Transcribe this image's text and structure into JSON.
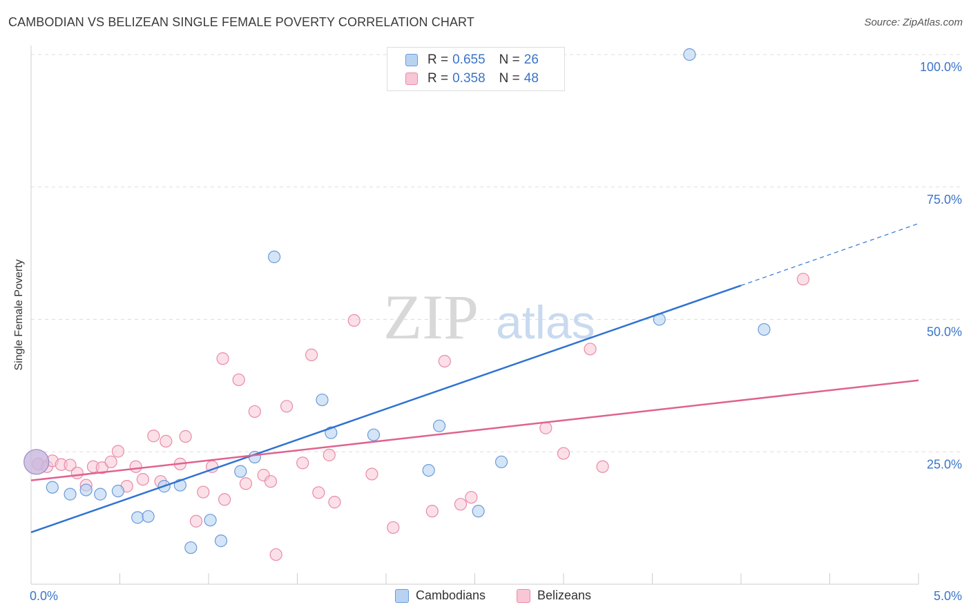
{
  "header": {
    "title": "CAMBODIAN VS BELIZEAN SINGLE FEMALE POVERTY CORRELATION CHART",
    "source": "Source: ZipAtlas.com"
  },
  "watermark": {
    "zip": "ZIP",
    "atlas": "atlas"
  },
  "legend": {
    "rows": [
      {
        "r_label": "R = ",
        "r_value": "0.655",
        "n_label": "N = ",
        "n_value": "26"
      },
      {
        "r_label": "R = ",
        "r_value": "0.358",
        "n_label": "N = ",
        "n_value": "48"
      }
    ],
    "bottom": [
      "Cambodians",
      "Belizeans"
    ]
  },
  "colors": {
    "blue_fill": "#b8d3f2",
    "blue_stroke": "#6a9ad8",
    "blue_line": "#2f72d1",
    "pink_fill": "#f8c6d5",
    "pink_stroke": "#e88aa8",
    "pink_line": "#e0628e",
    "grid": "#dddddd",
    "tick_text": "#3a74c9"
  },
  "chart_data": {
    "type": "scatter",
    "title": "CAMBODIAN VS BELIZEAN SINGLE FEMALE POVERTY CORRELATION CHART",
    "xlabel": "",
    "ylabel": "Single Female Poverty",
    "xlim": [
      0,
      5
    ],
    "ylim": [
      0,
      100
    ],
    "x_tick_labels": [
      "0.0%",
      "5.0%"
    ],
    "y_ticks": [
      25,
      50,
      75,
      100
    ],
    "y_tick_labels": [
      "25.0%",
      "50.0%",
      "75.0%",
      "100.0%"
    ],
    "series": [
      {
        "name": "Cambodians",
        "r": 0.655,
        "n": 26,
        "points": [
          [
            0.03,
            23.1
          ],
          [
            0.12,
            18.3
          ],
          [
            0.22,
            17.0
          ],
          [
            0.31,
            17.8
          ],
          [
            0.39,
            17.0
          ],
          [
            0.49,
            17.6
          ],
          [
            0.6,
            12.6
          ],
          [
            0.66,
            12.8
          ],
          [
            0.75,
            18.5
          ],
          [
            0.84,
            18.7
          ],
          [
            0.9,
            6.9
          ],
          [
            1.01,
            12.1
          ],
          [
            1.07,
            8.2
          ],
          [
            1.26,
            24.0
          ],
          [
            1.18,
            21.3
          ],
          [
            1.37,
            61.8
          ],
          [
            1.64,
            34.8
          ],
          [
            1.69,
            28.6
          ],
          [
            1.93,
            28.2
          ],
          [
            2.24,
            21.5
          ],
          [
            2.3,
            29.9
          ],
          [
            2.52,
            13.8
          ],
          [
            2.65,
            23.1
          ],
          [
            3.54,
            50.0
          ],
          [
            4.13,
            48.1
          ],
          [
            3.71,
            100.0
          ]
        ],
        "trend": {
          "x0": 0,
          "y0": 9.8,
          "x1": 4.0,
          "y1": 56.4,
          "dash_to_x": 5.0,
          "dash_to_y": 68.1
        }
      },
      {
        "name": "Belizeans",
        "r": 0.358,
        "n": 48,
        "points": [
          [
            0.04,
            22.7
          ],
          [
            0.09,
            22.2
          ],
          [
            0.12,
            23.3
          ],
          [
            0.17,
            22.6
          ],
          [
            0.22,
            22.5
          ],
          [
            0.26,
            21.0
          ],
          [
            0.31,
            18.7
          ],
          [
            0.35,
            22.2
          ],
          [
            0.4,
            22.0
          ],
          [
            0.45,
            23.1
          ],
          [
            0.49,
            25.1
          ],
          [
            0.54,
            18.5
          ],
          [
            0.59,
            22.2
          ],
          [
            0.63,
            19.8
          ],
          [
            0.69,
            28.0
          ],
          [
            0.73,
            19.4
          ],
          [
            0.76,
            27.0
          ],
          [
            0.84,
            22.7
          ],
          [
            0.87,
            27.9
          ],
          [
            0.93,
            11.9
          ],
          [
            0.97,
            17.4
          ],
          [
            1.02,
            22.2
          ],
          [
            1.08,
            42.6
          ],
          [
            1.09,
            16.0
          ],
          [
            1.17,
            38.6
          ],
          [
            1.21,
            19.0
          ],
          [
            1.26,
            32.6
          ],
          [
            1.31,
            20.6
          ],
          [
            1.35,
            19.4
          ],
          [
            1.38,
            5.6
          ],
          [
            1.44,
            33.6
          ],
          [
            1.53,
            22.9
          ],
          [
            1.58,
            43.3
          ],
          [
            1.62,
            17.3
          ],
          [
            1.68,
            24.4
          ],
          [
            1.71,
            15.5
          ],
          [
            1.82,
            49.8
          ],
          [
            1.92,
            20.8
          ],
          [
            2.04,
            10.7
          ],
          [
            2.26,
            13.8
          ],
          [
            2.33,
            42.1
          ],
          [
            2.42,
            15.1
          ],
          [
            2.48,
            16.4
          ],
          [
            2.9,
            29.5
          ],
          [
            3.0,
            24.7
          ],
          [
            3.15,
            44.4
          ],
          [
            3.22,
            22.2
          ],
          [
            4.35,
            57.6
          ]
        ],
        "trend": {
          "x0": 0,
          "y0": 19.6,
          "x1": 5.0,
          "y1": 38.5
        }
      }
    ]
  }
}
